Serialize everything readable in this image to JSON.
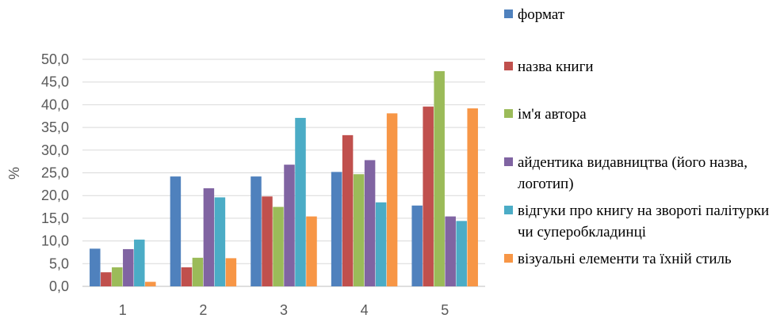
{
  "chart_data": {
    "type": "bar",
    "categories": [
      "1",
      "2",
      "3",
      "4",
      "5"
    ],
    "ylabel": "%",
    "xlabel": "",
    "ylim": [
      0,
      50
    ],
    "yticks": [
      "0,0",
      "5,0",
      "10,0",
      "15,0",
      "20,0",
      "25,0",
      "30,0",
      "35,0",
      "40,0",
      "45,0",
      "50,0"
    ],
    "grid": true,
    "legend_position": "right",
    "series": [
      {
        "name": "формат",
        "color": "#4f81bd",
        "values": [
          8.3,
          24.2,
          24.2,
          25.2,
          17.8
        ]
      },
      {
        "name": "назва книги",
        "color": "#c0504d",
        "values": [
          3.1,
          4.2,
          19.8,
          33.3,
          39.6
        ]
      },
      {
        "name": "ім'я автора",
        "color": "#9bbb59",
        "values": [
          4.2,
          6.3,
          17.5,
          24.7,
          47.4
        ]
      },
      {
        "name": "айдентика видавництва (його назва, логотип)",
        "color": "#8064a2",
        "values": [
          8.2,
          21.6,
          26.8,
          27.8,
          15.4
        ]
      },
      {
        "name": "відгуки про книгу на звороті палітурки чи суперобкладинці",
        "color": "#4bacc6",
        "values": [
          10.3,
          19.6,
          37.1,
          18.5,
          14.4
        ]
      },
      {
        "name": "візуальні елементи та їхній стиль",
        "color": "#f79646",
        "values": [
          1.0,
          6.2,
          15.4,
          38.1,
          39.2
        ]
      }
    ]
  }
}
